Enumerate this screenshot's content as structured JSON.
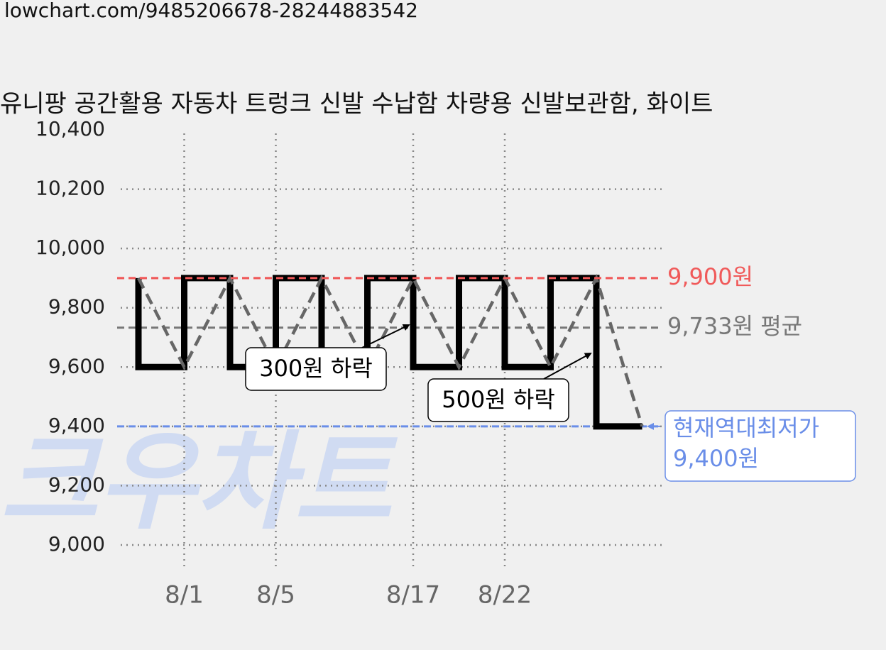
{
  "header": {
    "url": "lowchart.com/9485206678-28244883542"
  },
  "chart_data": {
    "type": "line",
    "title": "유니팡 공간활용 자동차 트렁크 신발 수납함 차량용 신발보관함, 화이트",
    "categories": [
      null,
      "8/1",
      null,
      "8/5",
      null,
      null,
      "8/17",
      null,
      "8/22",
      null,
      null,
      null
    ],
    "series": [
      {
        "color": "#000000",
        "values": [
          9900,
          9600,
          9900,
          9600,
          9900,
          9600,
          9900,
          9600,
          9900,
          9600,
          9900,
          9400
        ]
      }
    ],
    "trend_color": "#666666",
    "ylim": [
      9000,
      10400
    ],
    "yticks": [
      {
        "value": 9000,
        "label": "9,000"
      },
      {
        "value": 9200,
        "label": "9,200"
      },
      {
        "value": 9400,
        "label": "9,400"
      },
      {
        "value": 9600,
        "label": "9,600"
      },
      {
        "value": 9800,
        "label": "9,800"
      },
      {
        "value": 10000,
        "label": "10,000"
      },
      {
        "value": 10200,
        "label": "10,200"
      },
      {
        "value": 10400,
        "label": "10,400"
      }
    ],
    "grid": true,
    "reference_lines": [
      {
        "value": 9900,
        "label": "9,900원",
        "color": "#f05a5a"
      },
      {
        "value": 9733,
        "label": "9,733원 평균",
        "color": "#777777"
      },
      {
        "value": 9400,
        "label": "현재역대최저가",
        "value_label": "9,400원",
        "color": "#6a8ee8"
      }
    ],
    "annotations": [
      "300원 하락",
      "500원 하락"
    ],
    "watermark": "크우차트"
  }
}
